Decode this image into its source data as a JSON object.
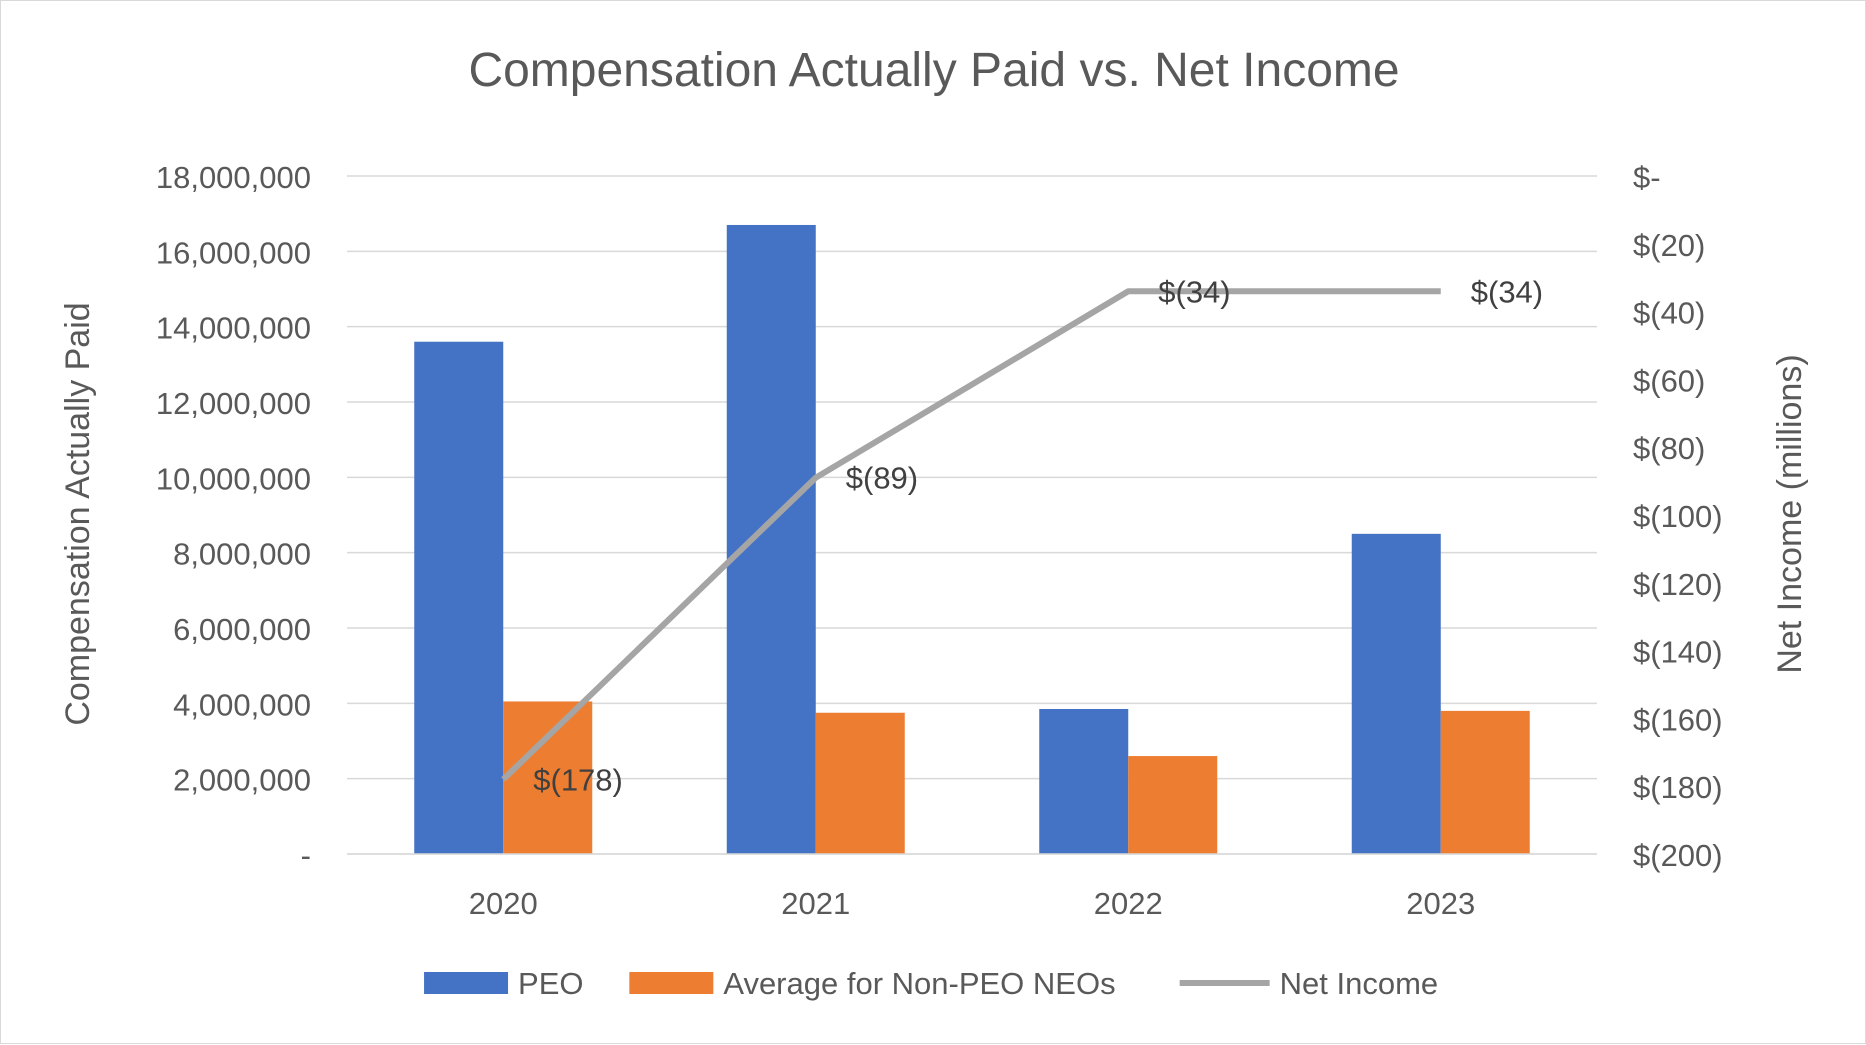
{
  "chart_data": {
    "type": "bar",
    "title": "Compensation Actually Paid vs. Net Income",
    "categories": [
      "2020",
      "2021",
      "2022",
      "2023"
    ],
    "series": [
      {
        "name": "PEO",
        "kind": "bar",
        "axis": "left",
        "color": "#4472C4",
        "values": [
          13600000,
          16700000,
          3850000,
          8500000
        ]
      },
      {
        "name": "Average for Non-PEO NEOs",
        "kind": "bar",
        "axis": "left",
        "color": "#ED7D31",
        "values": [
          4050000,
          3750000,
          2600000,
          3800000
        ]
      },
      {
        "name": "Net Income",
        "kind": "line",
        "axis": "right",
        "color": "#A5A5A5",
        "values": [
          -178,
          -89,
          -34,
          -34
        ],
        "data_labels": [
          "$(178)",
          "$(89)",
          "$(34)",
          "$(34)"
        ]
      }
    ],
    "ylabel": "Compensation Actually Paid",
    "ylim": [
      0,
      18000000
    ],
    "y_ticks": [
      0,
      2000000,
      4000000,
      6000000,
      8000000,
      10000000,
      12000000,
      14000000,
      16000000,
      18000000
    ],
    "y_tick_labels": [
      "-",
      "2,000,000",
      "4,000,000",
      "6,000,000",
      "8,000,000",
      "10,000,000",
      "12,000,000",
      "14,000,000",
      "16,000,000",
      "18,000,000"
    ],
    "y2label": "Net Income (millions)",
    "y2lim": [
      -200,
      0
    ],
    "y2_ticks": [
      -200,
      -180,
      -160,
      -140,
      -120,
      -100,
      -80,
      -60,
      -40,
      -20,
      0
    ],
    "y2_tick_labels": [
      "$(200)",
      "$(180)",
      "$(160)",
      "$(140)",
      "$(120)",
      "$(100)",
      "$(80)",
      "$(60)",
      "$(40)",
      "$(20)",
      "$-"
    ],
    "grid": true,
    "gridline_color": "#D9D9D9",
    "text_color": "#595959",
    "legend_position": "bottom"
  }
}
